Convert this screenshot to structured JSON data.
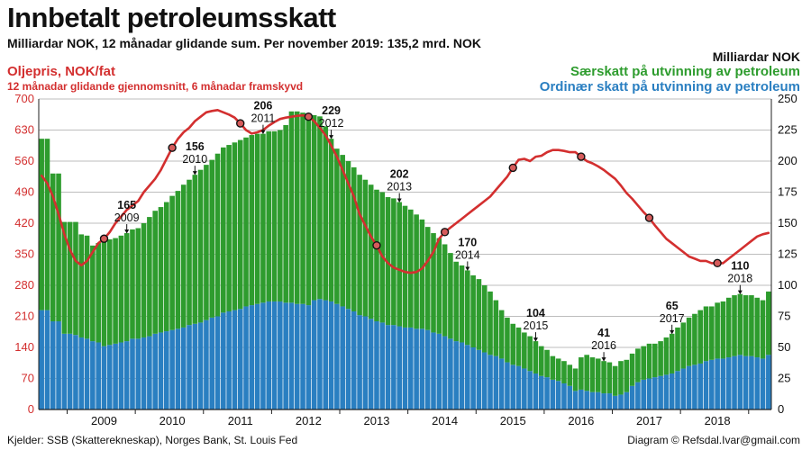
{
  "header": {
    "title": "Innbetalt petroleumsskatt",
    "subtitle": "Milliardar NOK, 12 månadar glidande sum. Per november 2019: 135,2 mrd. NOK"
  },
  "legend": {
    "oil_title": "Oljepris, NOK/fat",
    "oil_subtitle": "12 månadar glidande gjennomsnitt, 6 månadar framskyvd",
    "right_unit": "Milliardar NOK",
    "green_label": "Særskatt på utvinning av petroleum",
    "blue_label": "Ordinær skatt på utvinning av petroleum"
  },
  "footer": {
    "source": "Kjelder: SSB (Skatterekneskap), Norges Bank, St. Louis Fed",
    "credit": "Diagram © Refsdal.Ivar@gmail.com"
  },
  "colors": {
    "green": "#2e9c2e",
    "blue": "#2a7fc1",
    "red": "#d32f2f",
    "grid": "#bdbdbd",
    "axis": "#222222"
  },
  "chart_data": {
    "type": "bar",
    "stacked": true,
    "start": "2008-08",
    "title": "Innbetalt petroleumsskatt",
    "y_left": {
      "label": "Oljepris, NOK/fat",
      "range": [
        0,
        700
      ],
      "ticks": [
        0,
        70,
        140,
        210,
        280,
        350,
        420,
        490,
        560,
        630,
        700
      ]
    },
    "y_right": {
      "label": "Milliardar NOK",
      "range": [
        0,
        250
      ],
      "ticks": [
        0,
        25,
        50,
        75,
        100,
        125,
        150,
        175,
        200,
        225,
        250
      ]
    },
    "x_ticks": [
      "2009",
      "2010",
      "2011",
      "2012",
      "2013",
      "2014",
      "2015",
      "2016",
      "2017",
      "2018"
    ],
    "series": [
      {
        "name": "Ordinær skatt på utvinning av petroleum",
        "axis": "right",
        "values": [
          80,
          80,
          71,
          71,
          61,
          61,
          60,
          58,
          57,
          55,
          54,
          51,
          52,
          53,
          54,
          55,
          57,
          57,
          58,
          59,
          61,
          62,
          63,
          64,
          65,
          66,
          68,
          69,
          70,
          72,
          74,
          75,
          78,
          79,
          80,
          81,
          83,
          84,
          85,
          86,
          87,
          87,
          87,
          86,
          86,
          85,
          85,
          84,
          88,
          89,
          88,
          87,
          85,
          83,
          81,
          79,
          76,
          75,
          73,
          71,
          70,
          68,
          68,
          67,
          66,
          66,
          65,
          65,
          64,
          62,
          61,
          59,
          57,
          55,
          54,
          52,
          50,
          48,
          46,
          44,
          43,
          41,
          38,
          36,
          35,
          33,
          31,
          29,
          27,
          26,
          24,
          23,
          21,
          19,
          15,
          16,
          15,
          14,
          14,
          13,
          13,
          11,
          12,
          14,
          19,
          22,
          24,
          25,
          26,
          27,
          28,
          29,
          31,
          33,
          35,
          36,
          37,
          39,
          40,
          41,
          41,
          42,
          43,
          44,
          43,
          43,
          42,
          41,
          44
        ]
      },
      {
        "name": "Særskatt på utvinning av petroleum",
        "axis": "right",
        "values": [
          138,
          138,
          119,
          119,
          90,
          90,
          91,
          83,
          83,
          77,
          80,
          84,
          85,
          85,
          86,
          87,
          88,
          89,
          92,
          96,
          99,
          101,
          104,
          108,
          111,
          115,
          117,
          120,
          123,
          125,
          127,
          131,
          133,
          134,
          135,
          136,
          136,
          137,
          137,
          136,
          137,
          137,
          138,
          143,
          154,
          155,
          154,
          152,
          149,
          147,
          140,
          131,
          125,
          122,
          119,
          116,
          113,
          110,
          108,
          106,
          105,
          103,
          102,
          100,
          98,
          95,
          92,
          88,
          83,
          80,
          77,
          74,
          69,
          64,
          62,
          60,
          58,
          57,
          54,
          51,
          45,
          39,
          36,
          33,
          31,
          29,
          28,
          26,
          24,
          22,
          19,
          18,
          18,
          17,
          18,
          26,
          29,
          28,
          27,
          26,
          25,
          24,
          27,
          26,
          26,
          27,
          27,
          28,
          27,
          28,
          30,
          32,
          35,
          37,
          39,
          41,
          43,
          44,
          43,
          45,
          46,
          48,
          49,
          49,
          49,
          49,
          48,
          47,
          51
        ]
      },
      {
        "name": "Oljepris, NOK/fat",
        "type": "line",
        "axis": "left",
        "values": [
          527,
          510,
          480,
          440,
          395,
          360,
          335,
          325,
          335,
          355,
          375,
          385,
          400,
          420,
          435,
          450,
          460,
          470,
          490,
          505,
          520,
          540,
          565,
          590,
          610,
          625,
          635,
          650,
          660,
          670,
          673,
          675,
          670,
          665,
          658,
          645,
          630,
          622,
          625,
          630,
          640,
          648,
          655,
          658,
          660,
          662,
          663,
          660,
          650,
          635,
          618,
          595,
          570,
          540,
          510,
          480,
          440,
          415,
          390,
          370,
          345,
          330,
          320,
          315,
          310,
          308,
          310,
          318,
          335,
          355,
          385,
          400,
          410,
          420,
          430,
          440,
          450,
          460,
          470,
          480,
          495,
          510,
          525,
          545,
          563,
          565,
          560,
          570,
          572,
          580,
          585,
          585,
          583,
          580,
          580,
          570,
          560,
          555,
          548,
          540,
          530,
          520,
          505,
          488,
          475,
          460,
          445,
          432,
          415,
          400,
          385,
          375,
          365,
          355,
          345,
          340,
          335,
          335,
          330,
          330,
          330,
          340,
          350,
          360,
          370,
          380,
          390,
          395,
          398
        ]
      }
    ],
    "bar_annotations": [
      {
        "value": "165",
        "year": "2009"
      },
      {
        "value": "156",
        "year": "2010"
      },
      {
        "value": "206",
        "year": "2011"
      },
      {
        "value": "229",
        "year": "2012"
      },
      {
        "value": "202",
        "year": "2013"
      },
      {
        "value": "170",
        "year": "2014"
      },
      {
        "value": "104",
        "year": "2015"
      },
      {
        "value": "41",
        "year": "2016"
      },
      {
        "value": "65",
        "year": "2017"
      },
      {
        "value": "110",
        "year": "2018"
      }
    ]
  }
}
